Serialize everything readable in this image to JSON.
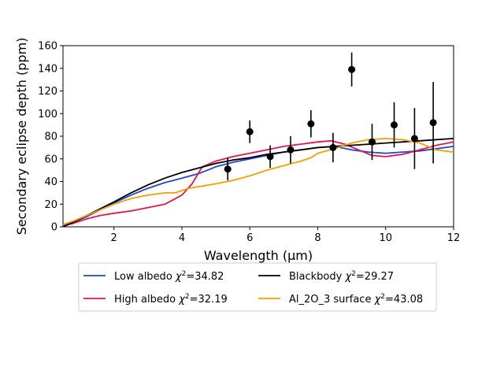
{
  "chart_data": {
    "type": "line",
    "title": "",
    "xlabel": "Wavelength (μm)",
    "ylabel": "Secondary eclipse depth (ppm)",
    "xlim": [
      0.5,
      12
    ],
    "ylim": [
      0,
      160
    ],
    "xticks": [
      2,
      4,
      6,
      8,
      10,
      12
    ],
    "yticks": [
      0,
      20,
      40,
      60,
      80,
      100,
      120,
      140,
      160
    ],
    "grid": false,
    "legend_placement": "below",
    "series": [
      {
        "label_main": "Low albedo ",
        "label_sup": "2",
        "label_rest": "=34.82",
        "color": "#1f46d6",
        "x": [
          0.5,
          0.8,
          1.2,
          1.6,
          2.0,
          2.5,
          3.0,
          3.5,
          4.0,
          4.5,
          5.0,
          5.5,
          6.0,
          6.5,
          7.0,
          7.5,
          8.0,
          8.5,
          9.0,
          9.5,
          10.0,
          10.5,
          11.0,
          11.5,
          12.0
        ],
        "y": [
          1,
          4,
          9,
          15,
          21,
          28,
          34,
          39,
          43,
          47,
          53,
          57,
          60,
          63,
          66,
          68,
          70,
          71,
          68,
          66,
          65,
          66,
          67,
          69,
          71
        ]
      },
      {
        "label_main": "High albedo ",
        "label_sup": "2",
        "label_rest": "=32.19",
        "color": "#e8134d",
        "x": [
          0.5,
          0.8,
          1.2,
          1.6,
          2.0,
          2.5,
          3.0,
          3.5,
          4.0,
          4.3,
          4.6,
          5.0,
          5.5,
          6.0,
          6.5,
          7.0,
          7.5,
          8.0,
          8.4,
          8.8,
          9.2,
          9.6,
          10.0,
          10.5,
          11.0,
          11.5,
          12.0
        ],
        "y": [
          1,
          3,
          7,
          10,
          12,
          14,
          17,
          20,
          28,
          38,
          53,
          58,
          62,
          65,
          68,
          71,
          73,
          75,
          76,
          73,
          68,
          63,
          62,
          64,
          68,
          72,
          75
        ]
      },
      {
        "label_main": "Blackbody ",
        "label_sup": "2",
        "label_rest": "=29.27",
        "color": "#000000",
        "x": [
          0.5,
          0.8,
          1.2,
          1.6,
          2.0,
          2.5,
          3.0,
          3.5,
          4.0,
          4.5,
          5.0,
          5.5,
          6.0,
          6.5,
          7.0,
          7.5,
          8.0,
          8.5,
          9.0,
          9.5,
          10.0,
          10.5,
          11.0,
          11.5,
          12.0
        ],
        "y": [
          0,
          4,
          10,
          16,
          22,
          30,
          37,
          43,
          48,
          52,
          56,
          59,
          61,
          64,
          66,
          68,
          70,
          71,
          72,
          73,
          74,
          75,
          76,
          77,
          78
        ]
      },
      {
        "label_main": "Al_2O_3 surface ",
        "label_sup": "2",
        "label_rest": "=43.08",
        "color": "#f5a000",
        "x": [
          0.5,
          0.8,
          1.2,
          1.6,
          2.0,
          2.5,
          3.0,
          3.5,
          3.8,
          4.2,
          4.6,
          5.0,
          5.5,
          6.0,
          6.5,
          7.0,
          7.5,
          7.8,
          8.0,
          8.5,
          9.0,
          9.5,
          10.0,
          10.5,
          11.0,
          11.5,
          12.0
        ],
        "y": [
          2,
          5,
          10,
          15,
          20,
          25,
          28,
          30,
          30,
          34,
          36,
          38,
          41,
          45,
          50,
          54,
          58,
          61,
          65,
          69,
          74,
          77,
          78,
          77,
          74,
          68,
          66
        ]
      }
    ],
    "data_points": {
      "x": [
        5.35,
        6.0,
        6.6,
        7.2,
        7.8,
        8.45,
        9.0,
        9.6,
        10.25,
        10.85,
        11.4
      ],
      "y": [
        51,
        84,
        62,
        68,
        91,
        70,
        139,
        75,
        90,
        78,
        92
      ],
      "err": [
        10,
        10,
        10,
        12,
        12,
        13,
        15,
        16,
        20,
        27,
        36
      ]
    }
  }
}
